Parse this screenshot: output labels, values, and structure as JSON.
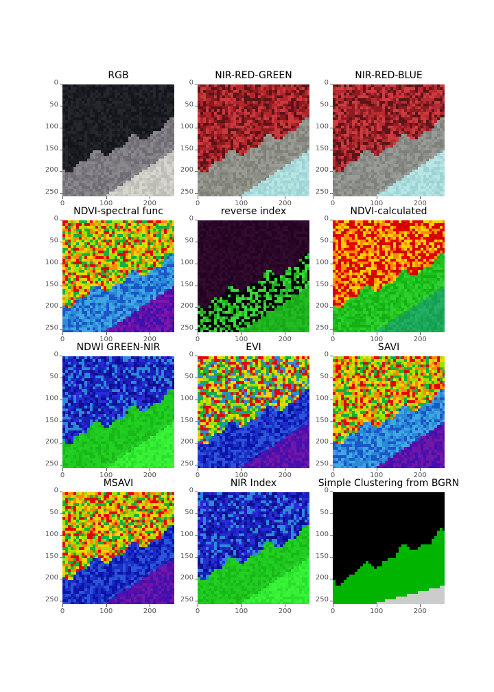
{
  "figure": {
    "panels": [
      {
        "title": "RGB",
        "style": "rgb"
      },
      {
        "title": "NIR-RED-GREEN",
        "style": "nrg"
      },
      {
        "title": "NIR-RED-BLUE",
        "style": "nrb"
      },
      {
        "title": "NDVI-spectral func",
        "style": "ndvi_spec"
      },
      {
        "title": "reverse index",
        "style": "reverse"
      },
      {
        "title": "NDVI-calculated",
        "style": "ndvi_calc"
      },
      {
        "title": "NDWI GREEN-NIR",
        "style": "ndwi"
      },
      {
        "title": "EVI",
        "style": "evi"
      },
      {
        "title": "SAVI",
        "style": "savi"
      },
      {
        "title": "MSAVI",
        "style": "msavi"
      },
      {
        "title": "NIR Index",
        "style": "nir"
      },
      {
        "title": "Simple Clustering from BGRN",
        "style": "cluster"
      }
    ],
    "y_ticks": [
      "0",
      "50",
      "100",
      "150",
      "200",
      "250"
    ],
    "x_ticks": [
      "0",
      "100",
      "200"
    ]
  }
}
